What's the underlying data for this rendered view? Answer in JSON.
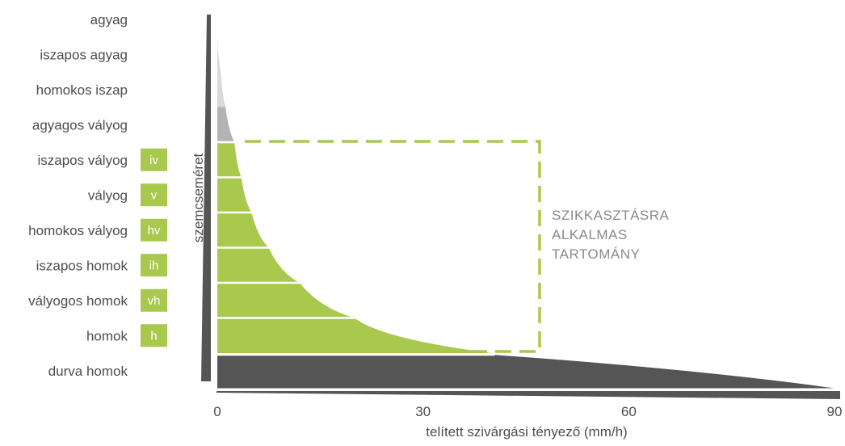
{
  "colors": {
    "green": "#a8c94e",
    "dark_gray": "#555555",
    "light_gray": "#d9d9d9",
    "mid_gray": "#b3b3b3",
    "dash": "#a8c94e",
    "label": "#4d4d4d",
    "zone_text": "#8a8a8a"
  },
  "y_axis_title": "szemcseméret",
  "x_axis_title": "telített szivárgási tényező (mm/h)",
  "zone": {
    "lines": [
      "SZIKKASZTÁSRA",
      "ALKALMAS",
      "TARTOMÁNY"
    ],
    "x_max": 47
  },
  "soils": [
    {
      "name": "agyag",
      "badge": "",
      "max_k": 0,
      "zone": "none"
    },
    {
      "name": "iszapos agyag",
      "badge": "",
      "max_k": 0.5,
      "zone": "light"
    },
    {
      "name": "homokos iszap",
      "badge": "",
      "max_k": 1.2,
      "zone": "light"
    },
    {
      "name": "agyagos vályog",
      "badge": "",
      "max_k": 2.5,
      "zone": "mid"
    },
    {
      "name": "iszapos vályog",
      "badge": "iv",
      "max_k": 3.5,
      "zone": "green"
    },
    {
      "name": "vályog",
      "badge": "v",
      "max_k": 5,
      "zone": "green"
    },
    {
      "name": "homokos vályog",
      "badge": "hv",
      "max_k": 7.5,
      "zone": "green"
    },
    {
      "name": "iszapos homok",
      "badge": "ih",
      "max_k": 12,
      "zone": "green"
    },
    {
      "name": "vályogos homok",
      "badge": "vh",
      "max_k": 20,
      "zone": "green"
    },
    {
      "name": "homok",
      "badge": "h",
      "max_k": 40,
      "zone": "green"
    },
    {
      "name": "durva homok",
      "badge": "",
      "max_k": 90,
      "zone": "dark"
    }
  ],
  "x_axis": {
    "min": 0,
    "max": 90,
    "ticks": [
      "0",
      "30",
      "60",
      "90"
    ],
    "tick_values": [
      0,
      30,
      60,
      90
    ]
  }
}
